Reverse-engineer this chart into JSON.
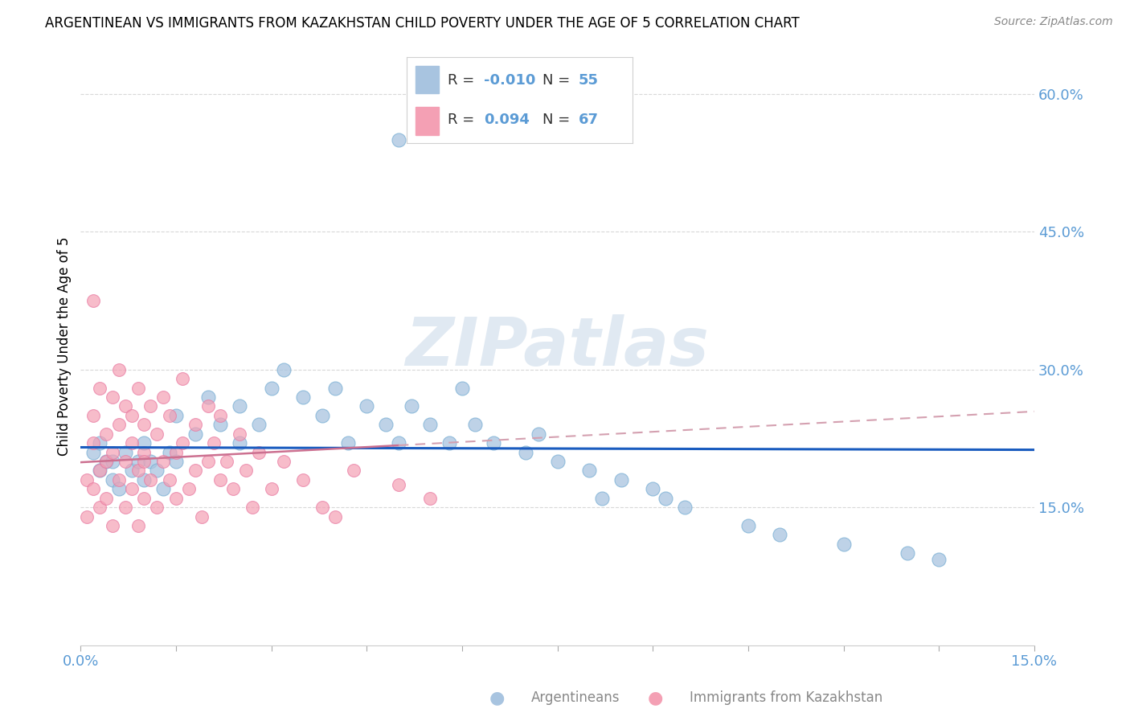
{
  "title": "ARGENTINEAN VS IMMIGRANTS FROM KAZAKHSTAN CHILD POVERTY UNDER THE AGE OF 5 CORRELATION CHART",
  "source": "Source: ZipAtlas.com",
  "ylabel": "Child Poverty Under the Age of 5",
  "ylabel_right_ticks": [
    "60.0%",
    "45.0%",
    "30.0%",
    "15.0%"
  ],
  "ylabel_right_vals": [
    0.6,
    0.45,
    0.3,
    0.15
  ],
  "xlim": [
    0.0,
    0.15
  ],
  "ylim": [
    0.0,
    0.65
  ],
  "watermark": "ZIPatlas",
  "legend_blue_r": "-0.010",
  "legend_blue_n": "55",
  "legend_pink_r": "0.094",
  "legend_pink_n": "67",
  "color_blue": "#a8c4e0",
  "color_blue_edge": "#7aafd4",
  "color_pink": "#f4a0b4",
  "color_pink_edge": "#e878a0",
  "color_line_blue": "#1a5cbf",
  "color_line_pink": "#cc7090",
  "color_line_pink_dash": "#d4a0b0",
  "color_axis_text": "#5b9bd5",
  "color_grid": "#d8d8d8",
  "color_border": "#d0d0d0",
  "title_fontsize": 12,
  "axis_label_fontsize": 12,
  "tick_label_fontsize": 13
}
